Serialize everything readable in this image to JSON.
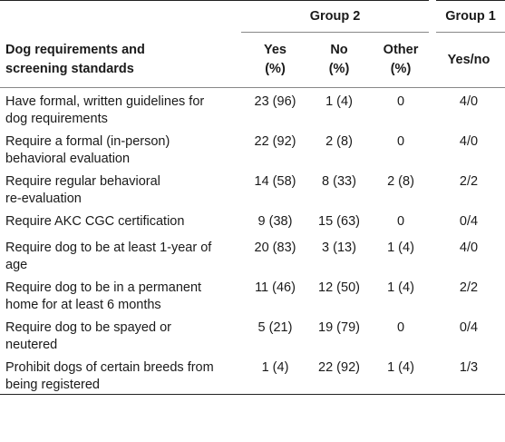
{
  "table": {
    "group2_label": "Group 2",
    "group1_label": "Group 1",
    "header": {
      "requirement_line1": "Dog requirements and",
      "requirement_line2": "screening standards",
      "yes_line1": "Yes",
      "yes_line2": "(%)",
      "no_line1": "No",
      "no_line2": "(%)",
      "other_line1": "Other",
      "other_line2": "(%)",
      "g1_line1": "Yes/no"
    },
    "rows": [
      {
        "req_line1": "Have formal, written guidelines for",
        "req_line2": "dog requirements",
        "yes": "23 (96)",
        "no": "1 (4)",
        "other": "0",
        "g1": "4/0"
      },
      {
        "req_line1": "Require a formal (in-person)",
        "req_line2": "behavioral evaluation",
        "yes": "22 (92)",
        "no": "2 (8)",
        "other": "0",
        "g1": "4/0"
      },
      {
        "req_line1": "Require regular behavioral",
        "req_line2": "re-evaluation",
        "yes": "14 (58)",
        "no": "8 (33)",
        "other": "2 (8)",
        "g1": "2/2"
      },
      {
        "req_line1": "Require AKC CGC certification",
        "req_line2": "",
        "yes": "9 (38)",
        "no": "15 (63)",
        "other": "0",
        "g1": "0/4"
      },
      {
        "req_line1": "Require dog to be at least 1-year of",
        "req_line2": "age",
        "yes": "20 (83)",
        "no": "3 (13)",
        "other": "1 (4)",
        "g1": "4/0"
      },
      {
        "req_line1": "Require dog to be in a permanent",
        "req_line2": "home for at least 6 months",
        "yes": "11 (46)",
        "no": "12 (50)",
        "other": "1 (4)",
        "g1": "2/2"
      },
      {
        "req_line1": "Require dog to be spayed or",
        "req_line2": "neutered",
        "yes": "5 (21)",
        "no": "19 (79)",
        "other": "0",
        "g1": "0/4"
      },
      {
        "req_line1": "Prohibit dogs of certain breeds from",
        "req_line2": "being registered",
        "yes": "1 (4)",
        "no": "22 (92)",
        "other": "1 (4)",
        "g1": "1/3"
      }
    ]
  }
}
